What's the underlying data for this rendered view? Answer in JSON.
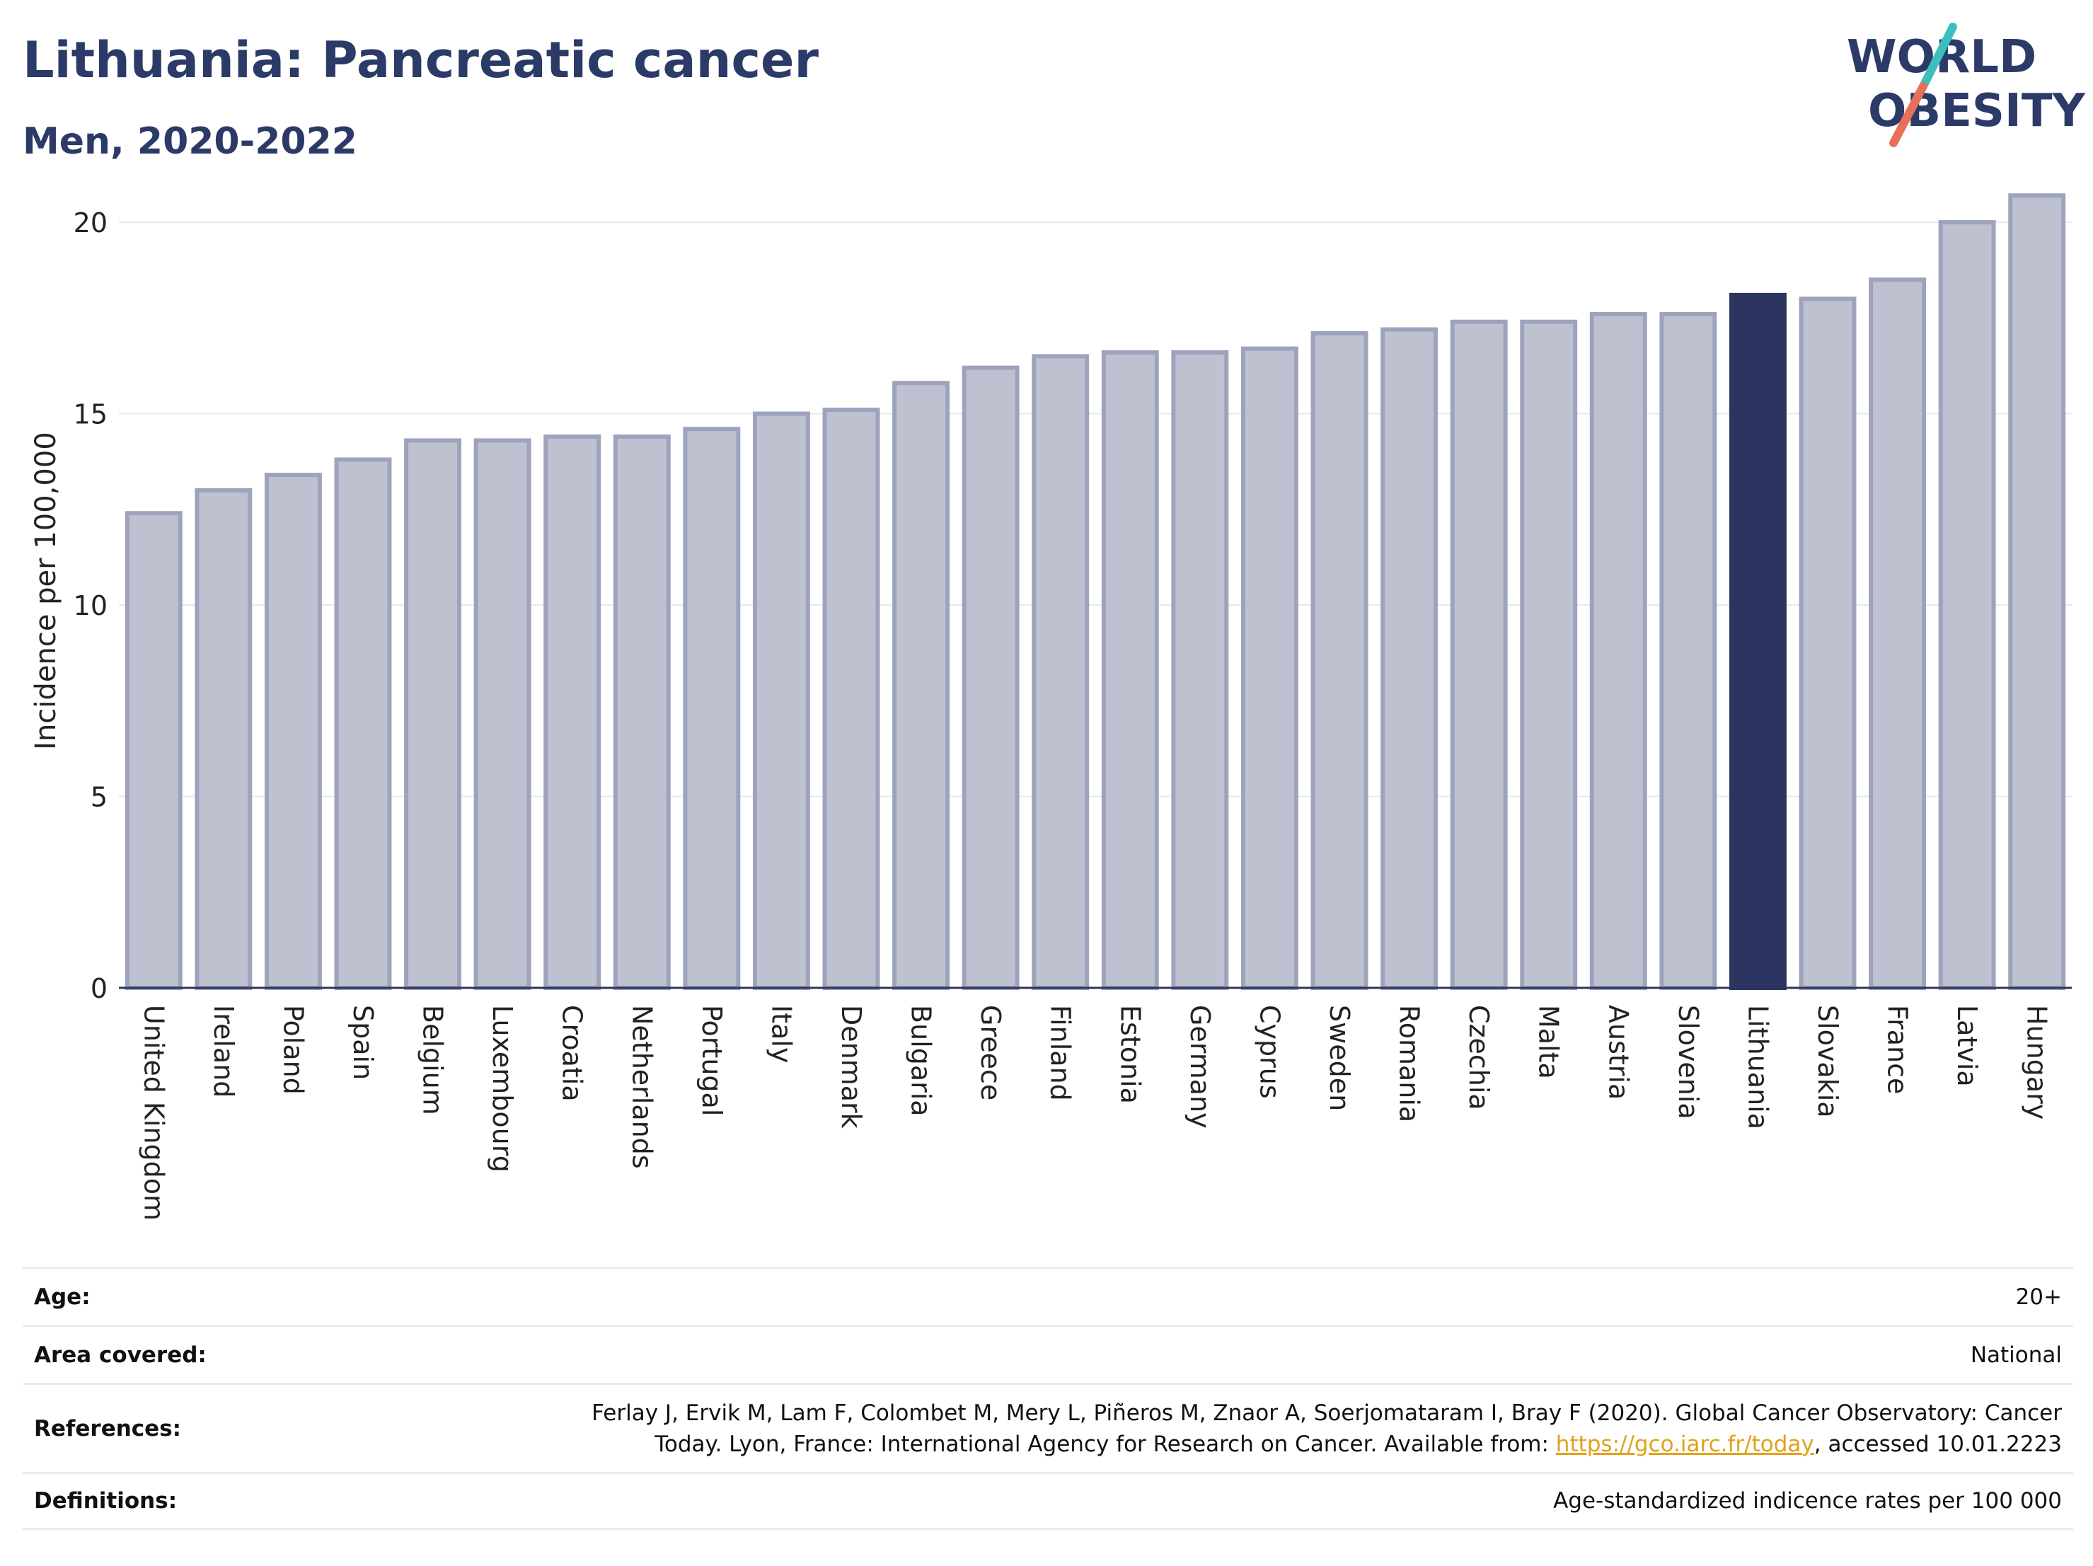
{
  "header": {
    "title": "Lithuania: Pancreatic cancer",
    "subtitle": "Men, 2020-2022"
  },
  "logo": {
    "line1": "WORLD",
    "line2": "OBESITY",
    "colors": {
      "text": "#2b3a67",
      "slash_teal": "#3bbfbf",
      "slash_coral": "#e8705a"
    }
  },
  "chart_data": {
    "type": "bar",
    "title": "",
    "xlabel": "",
    "ylabel": "Incidence per 100,000",
    "ylim": [
      0,
      21
    ],
    "yticks": [
      0,
      5,
      10,
      15,
      20
    ],
    "grid": true,
    "legend": "none",
    "highlight": "Lithuania",
    "colors": {
      "bar": "#bec1cf",
      "bar_edge": "#9ea3bd",
      "highlight": "#2b3560",
      "grid": "#e6e9ee",
      "axis": "#2b3560"
    },
    "categories": [
      "United Kingdom",
      "Ireland",
      "Poland",
      "Spain",
      "Belgium",
      "Luxembourg",
      "Croatia",
      "Netherlands",
      "Portugal",
      "Italy",
      "Denmark",
      "Bulgaria",
      "Greece",
      "Finland",
      "Estonia",
      "Germany",
      "Cyprus",
      "Sweden",
      "Romania",
      "Czechia",
      "Malta",
      "Austria",
      "Slovenia",
      "Lithuania",
      "Slovakia",
      "France",
      "Latvia",
      "Hungary"
    ],
    "values": [
      12.4,
      13.0,
      13.4,
      13.8,
      14.3,
      14.3,
      14.4,
      14.4,
      14.6,
      15.0,
      15.1,
      15.8,
      16.2,
      16.5,
      16.6,
      16.6,
      16.7,
      17.1,
      17.2,
      17.4,
      17.4,
      17.6,
      17.6,
      18.1,
      18.0,
      18.5,
      20.0,
      20.7
    ]
  },
  "info": {
    "age_label": "Age:",
    "age_value": "20+",
    "area_label": "Area covered:",
    "area_value": "National",
    "references_label": "References:",
    "references_line1": "Ferlay J, Ervik M, Lam F, Colombet M, Mery L, Piñeros M, Znaor A, Soerjomataram I, Bray F (2020). Global Cancer Observatory: Cancer",
    "references_line2_prefix": "Today. Lyon, France: International Agency for Research on Cancer. Available from: ",
    "references_link": "https://gco.iarc.fr/today",
    "references_line2_suffix": ", accessed 10.01.2223",
    "definitions_label": "Definitions:",
    "definitions_value": "Age-standardized indicence rates per 100 000"
  }
}
